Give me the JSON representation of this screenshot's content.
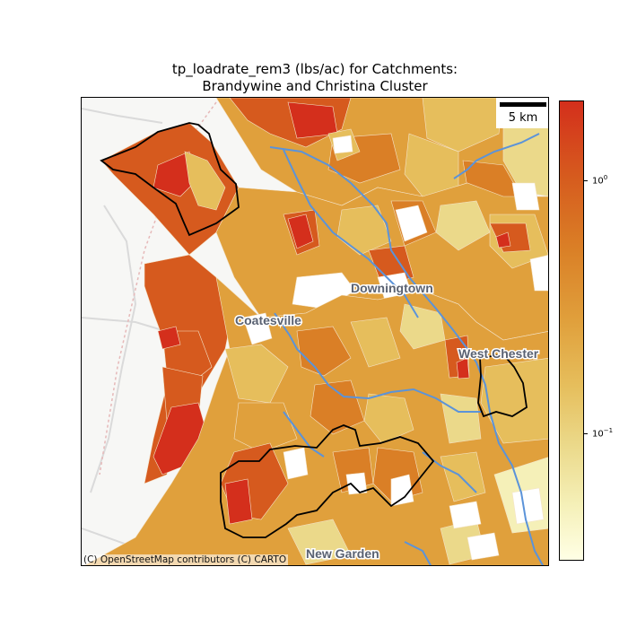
{
  "title": "tp_loadrate_rem3 (lbs/ac) for Catchments:\n Brandywine and Christina Cluster",
  "scale_bar": {
    "label": "5 km"
  },
  "attribution": "(C) OpenStreetMap contributors (C) CARTO",
  "places": [
    "Downingtown",
    "Coatesville",
    "West Chester",
    "New Garden"
  ],
  "colorbar": {
    "scale": "log",
    "colormap": [
      "#ffffe5",
      "#f5f0b8",
      "#ebd98a",
      "#e6be5c",
      "#e0a03c",
      "#da7f26",
      "#d65a1e",
      "#d42f1c"
    ],
    "ticks": [
      {
        "base": "10",
        "exp": "0",
        "value": 1.0
      },
      {
        "base": "10",
        "exp": "−1",
        "value": 0.1
      }
    ]
  },
  "colors": {
    "river": "#5b93d9",
    "outline": "#000000"
  }
}
